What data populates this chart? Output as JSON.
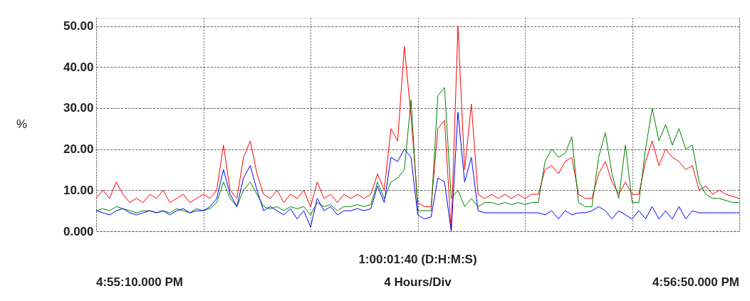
{
  "chart_data": {
    "type": "line",
    "ylabel": "%",
    "categories": [
      null,
      null,
      null,
      null,
      null,
      null,
      null,
      null,
      null,
      null,
      null,
      null,
      null,
      null,
      null,
      null,
      null,
      null,
      null,
      null,
      null,
      null,
      null,
      null,
      null,
      null,
      null,
      null,
      null,
      null,
      null,
      null,
      null,
      null,
      null,
      null,
      null,
      null,
      null,
      null,
      null,
      null,
      null,
      null,
      null,
      null,
      null,
      null,
      null,
      null,
      null,
      null,
      null,
      null,
      null,
      null,
      null,
      null,
      null,
      null,
      null,
      null,
      null,
      null,
      null,
      null,
      null,
      null,
      null,
      null,
      null,
      null,
      null,
      null,
      null,
      null,
      null,
      null,
      null,
      null,
      null,
      null,
      null,
      null,
      null,
      null,
      null,
      null,
      null,
      null,
      null,
      null,
      null,
      null,
      null,
      null,
      null
    ],
    "series": [
      {
        "color": "#ff0000",
        "values": [
          8,
          10,
          8,
          12,
          9,
          7,
          8,
          7,
          9,
          8,
          10,
          7,
          8,
          9,
          7,
          8,
          9,
          8,
          10,
          21,
          10,
          8,
          18,
          22,
          14,
          9,
          8,
          10,
          7,
          9,
          8,
          10,
          6,
          12,
          8,
          9,
          7,
          9,
          8,
          9,
          8,
          9,
          14,
          10,
          25,
          22,
          45,
          28,
          7,
          6,
          6,
          25,
          27,
          0,
          50,
          15,
          31,
          9,
          8,
          9,
          8,
          9,
          8,
          9,
          8,
          9,
          9,
          15,
          16,
          14,
          17,
          18,
          9,
          8,
          8,
          14,
          17,
          12,
          9,
          12,
          9,
          9,
          17,
          22,
          16,
          20,
          18,
          17,
          15,
          16,
          10,
          11,
          9,
          10,
          9,
          8.5,
          8
        ]
      },
      {
        "color": "#008000",
        "values": [
          5,
          5.5,
          5,
          6,
          5.5,
          5,
          4.5,
          5,
          5,
          4.5,
          5,
          4.5,
          5.5,
          5,
          4.5,
          5.5,
          5,
          5.5,
          7,
          12,
          8,
          6,
          10,
          12,
          9,
          6,
          5.5,
          6,
          5,
          6,
          5.5,
          6,
          4,
          7,
          6,
          6.5,
          5,
          6,
          6,
          6.5,
          6,
          6.5,
          12,
          8,
          12,
          13,
          15,
          32,
          5,
          5,
          5,
          33,
          35,
          8,
          10,
          6,
          8,
          6,
          7,
          7,
          6.5,
          7,
          6.5,
          7,
          6.5,
          7,
          7,
          17,
          20,
          18,
          19,
          23,
          7,
          6,
          6,
          18,
          24,
          14,
          8,
          21,
          7,
          7,
          20,
          30,
          22,
          26,
          21,
          25,
          20,
          21,
          12,
          9,
          8,
          8,
          7.5,
          7,
          7
        ]
      },
      {
        "color": "#0000ff",
        "values": [
          5,
          4.5,
          4,
          5,
          5.5,
          4.5,
          4,
          4.5,
          5,
          4.5,
          5,
          4,
          5,
          5.5,
          4.5,
          5,
          5,
          6,
          8,
          15,
          9,
          6,
          13,
          16,
          10,
          5,
          6,
          5,
          4,
          5.5,
          3,
          5,
          1,
          8,
          5,
          6,
          4,
          5,
          5,
          5.5,
          5,
          5.5,
          11,
          7,
          18,
          17,
          20,
          18,
          4,
          3,
          3.5,
          13,
          12,
          0,
          29,
          12,
          18,
          5,
          4.5,
          4.5,
          4.5,
          4.5,
          4.5,
          4.5,
          4.5,
          4.5,
          4.5,
          4,
          5,
          3,
          5,
          4,
          4.5,
          4.5,
          5,
          6,
          5,
          3,
          5,
          4,
          3,
          5,
          3,
          6,
          3,
          5,
          3,
          6,
          3,
          5,
          4.5,
          4.5,
          4.5,
          4.5,
          4.5,
          4.5,
          4.5
        ]
      }
    ],
    "ylim": [
      0,
      52
    ],
    "yticks": [
      {
        "value": 0,
        "label": "0.000"
      },
      {
        "value": 10,
        "label": "10.00"
      },
      {
        "value": 20,
        "label": "20.00"
      },
      {
        "value": 30,
        "label": "30.00"
      },
      {
        "value": 40,
        "label": "40.00"
      },
      {
        "value": 50,
        "label": "50.00"
      }
    ],
    "grid": true,
    "legend": false,
    "tick_labels": "y",
    "marker": "none",
    "line_style": "solid",
    "annotations": [
      "1:00:01:40 (D:H:M:S)",
      "4:55:10.000 PM",
      "4 Hours/Div",
      "4:56:50.000 PM"
    ]
  }
}
